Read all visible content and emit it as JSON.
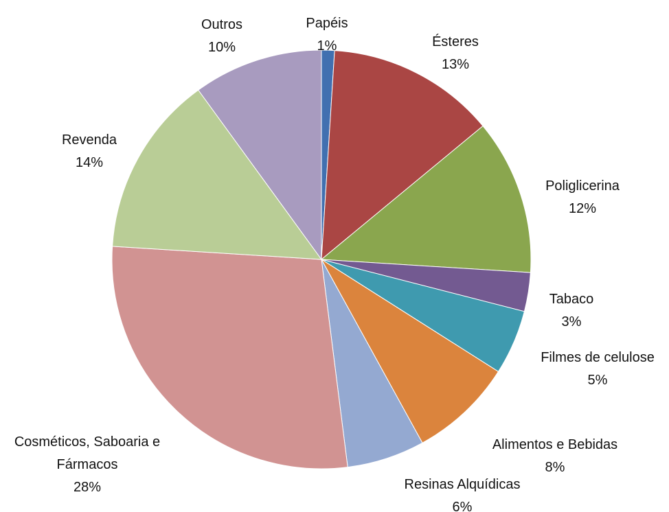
{
  "chart_data": {
    "type": "pie",
    "categories": [
      "Papéis",
      "Ésteres",
      "Poliglicerina",
      "Tabaco",
      "Filmes de celulose",
      "Alimentos e Bebidas",
      "Resinas Alquídicas",
      "Cosméticos, Saboaria e Fármacos",
      "Revenda",
      "Outros"
    ],
    "values": [
      1,
      13,
      12,
      3,
      5,
      8,
      6,
      28,
      14,
      10
    ],
    "value_labels": [
      "1%",
      "13%",
      "12%",
      "3%",
      "5%",
      "8%",
      "6%",
      "28%",
      "14%",
      "10%"
    ],
    "colors": [
      "#4170b0",
      "#aa4644",
      "#8aa64e",
      "#735a91",
      "#3f9aaf",
      "#db843d",
      "#94a9d1",
      "#d19392",
      "#b9cd96",
      "#a89bbf"
    ]
  }
}
